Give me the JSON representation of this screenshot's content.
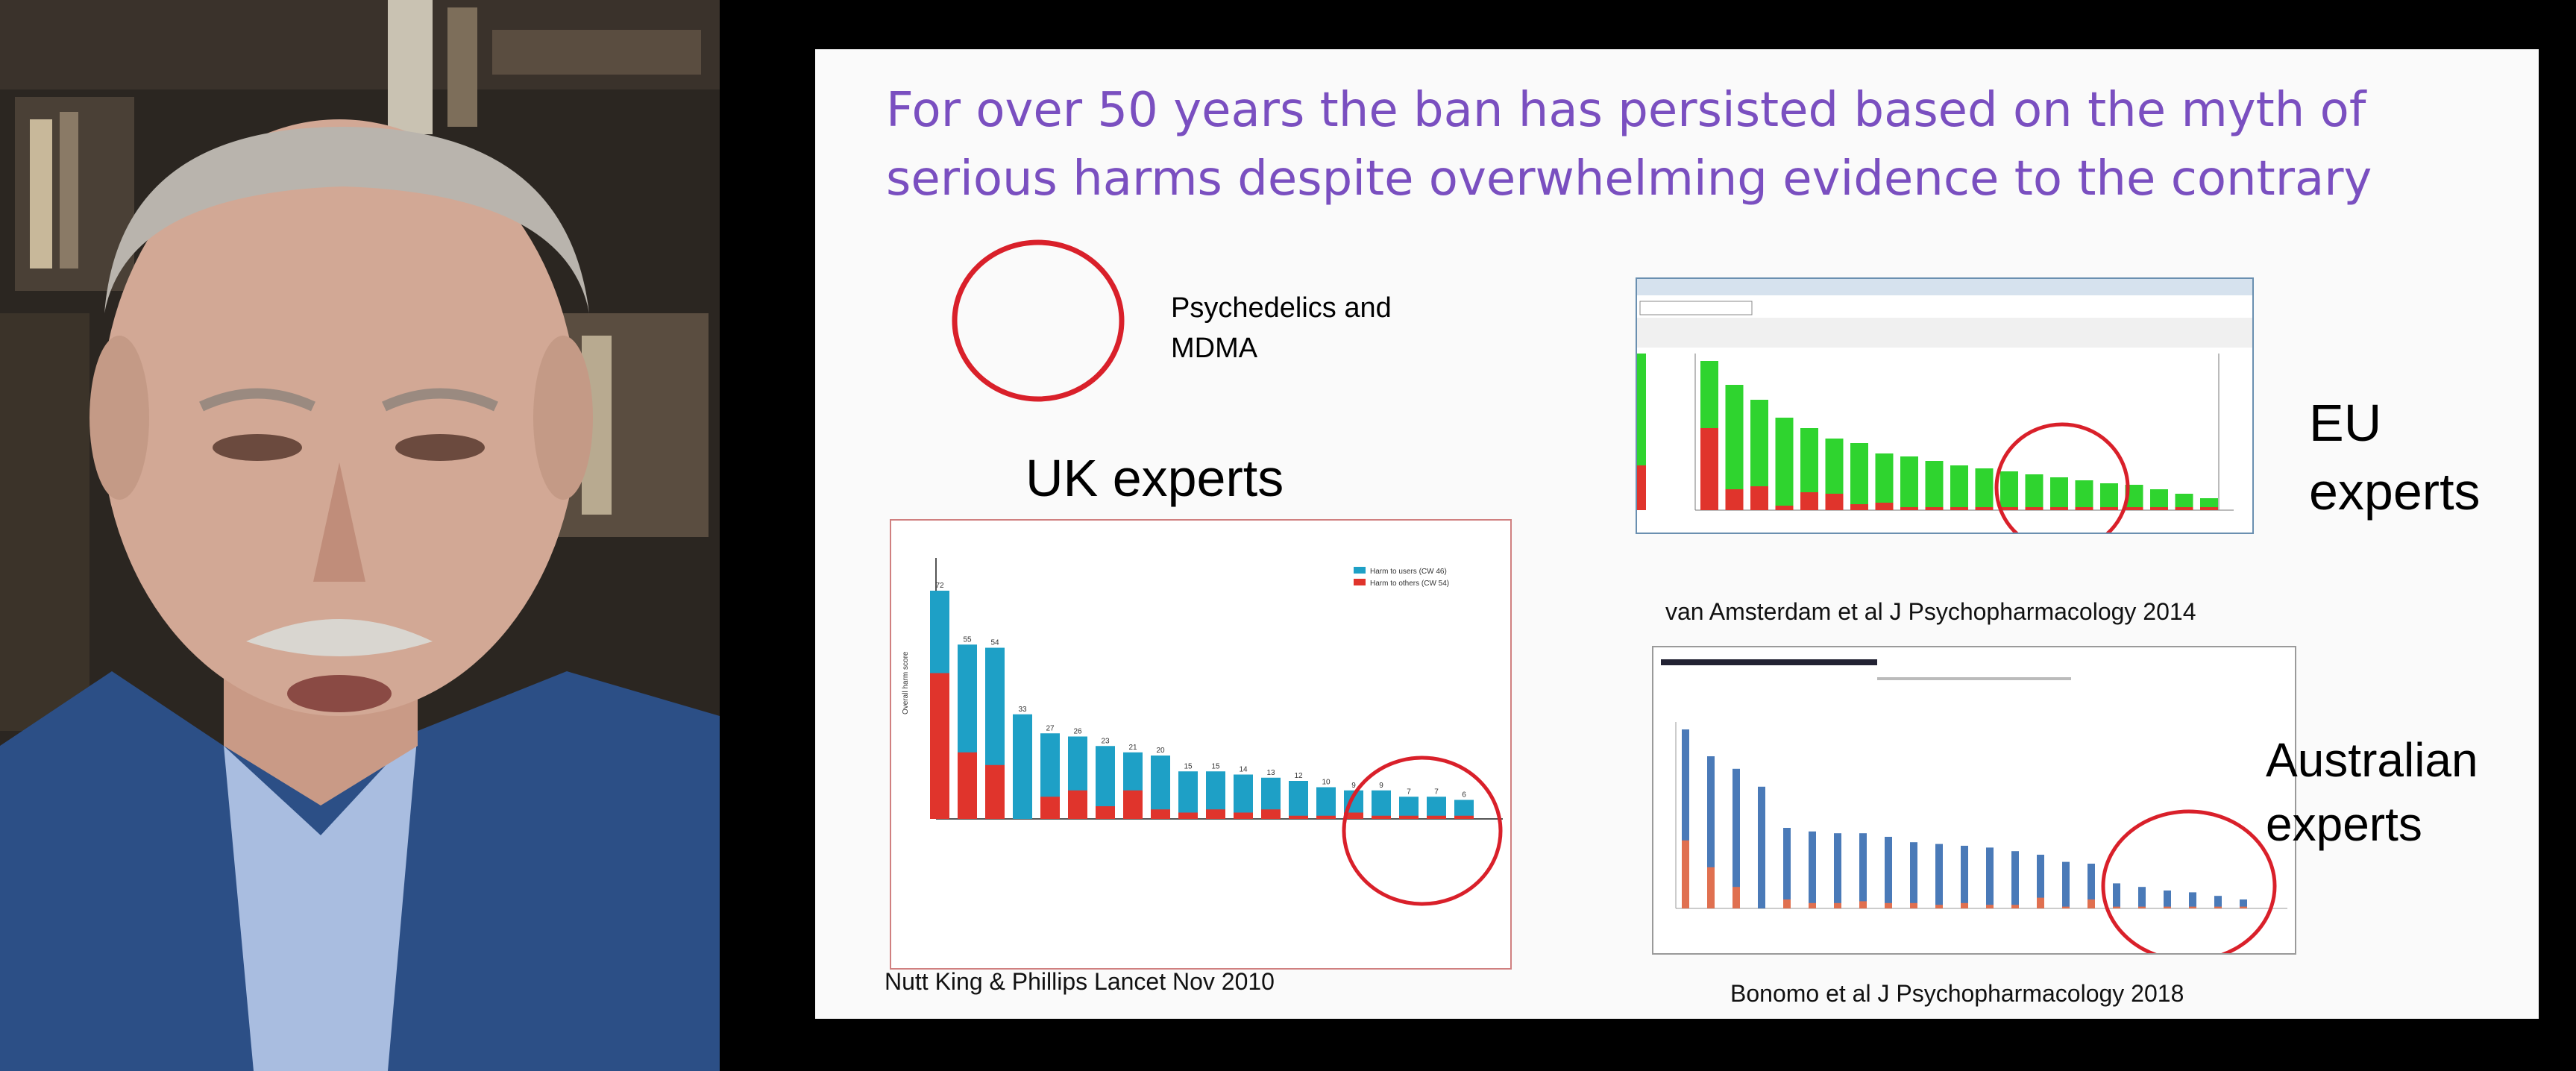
{
  "slide": {
    "title": "For over 50 years the ban has persisted based on the myth of serious harms despite overwhelming evidence to the contrary",
    "legend_label": "Psychedelics and MDMA",
    "uk_label": "UK experts",
    "eu_label": "EU experts",
    "au_label": "Australian experts",
    "uk_citation": "Nutt  King & Phillips Lancet Nov 2010",
    "eu_citation": "van Amsterdam et al J Psychopharmacology  2014",
    "au_citation": "Bonomo et al  J Psychopharmacology 2018",
    "circle_color": "#d9202a"
  },
  "colors": {
    "title_purple": "#7a4fc0",
    "bar_blue": "#1ea0c6",
    "bar_red": "#e0342c",
    "bar_green": "#2fd42f"
  },
  "uk_chart": {
    "values": [
      72,
      55,
      54,
      33,
      27,
      26,
      23,
      21,
      20,
      15,
      15,
      14,
      13,
      12,
      10,
      9,
      9,
      7,
      7,
      6
    ],
    "others": [
      46,
      21,
      17,
      0,
      7,
      9,
      4,
      9,
      3,
      2,
      3,
      2,
      3,
      1,
      1,
      2,
      1,
      1,
      1,
      1
    ],
    "ymax": 80,
    "legend": [
      "Harm to users (CW 46)",
      "Harm to others (CW 54)"
    ]
  },
  "eu_chart": {
    "values": [
      100,
      84,
      74,
      62,
      55,
      48,
      45,
      38,
      36,
      33,
      30,
      28,
      26,
      24,
      22,
      20,
      18,
      17,
      14,
      11,
      8
    ],
    "others": [
      55,
      14,
      16,
      3,
      12,
      11,
      4,
      5,
      2,
      2,
      2,
      2,
      2,
      2,
      2,
      2,
      2,
      2,
      2,
      2,
      2
    ]
  },
  "au_chart": {
    "values": [
      100,
      85,
      78,
      68,
      45,
      43,
      42,
      42,
      40,
      37,
      36,
      35,
      34,
      32,
      30,
      26,
      25,
      14,
      12,
      10,
      9,
      7,
      5
    ],
    "others": [
      38,
      23,
      12,
      0,
      5,
      3,
      3,
      4,
      3,
      3,
      2,
      3,
      2,
      2,
      6,
      1,
      5,
      1,
      1,
      1,
      1,
      1,
      1
    ]
  }
}
